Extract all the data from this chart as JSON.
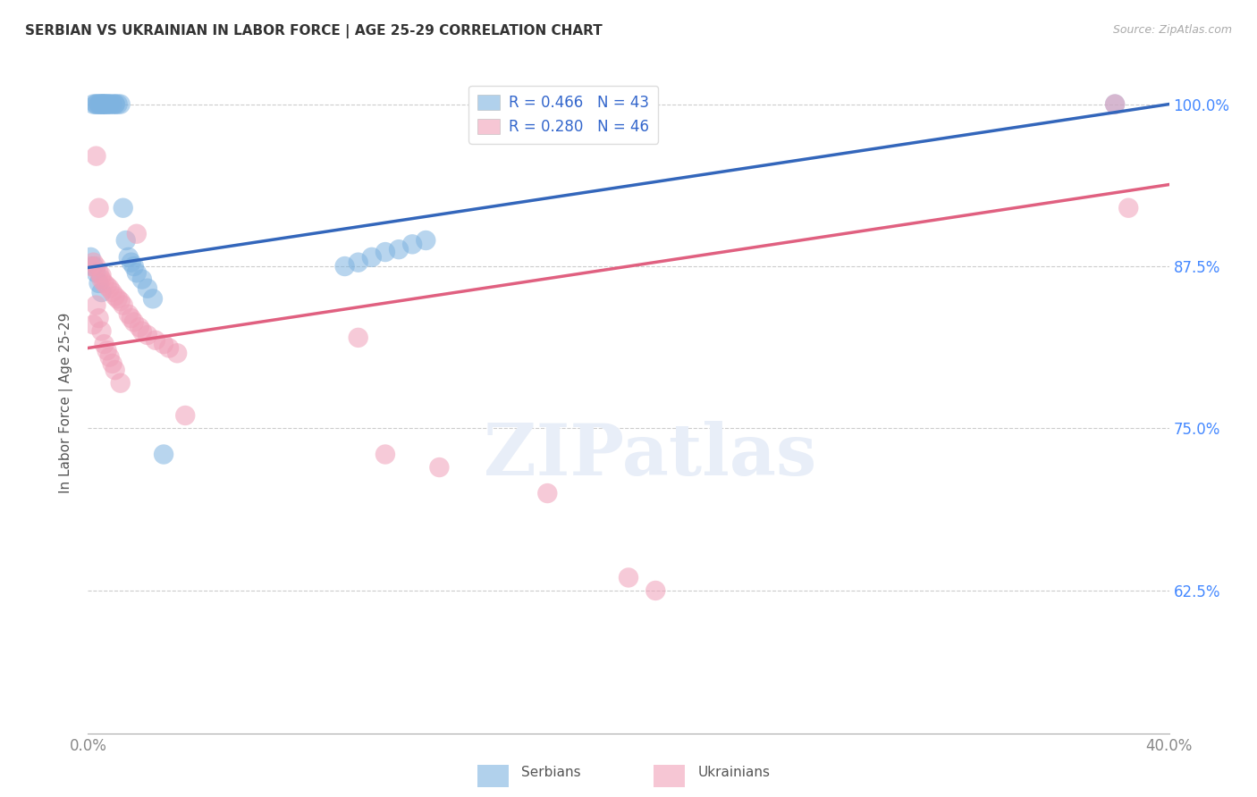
{
  "title": "SERBIAN VS UKRAINIAN IN LABOR FORCE | AGE 25-29 CORRELATION CHART",
  "source": "Source: ZipAtlas.com",
  "ylabel": "In Labor Force | Age 25-29",
  "yticks": [
    0.625,
    0.75,
    0.875,
    1.0
  ],
  "ytick_labels": [
    "62.5%",
    "75.0%",
    "87.5%",
    "100.0%"
  ],
  "legend_serbian": "R = 0.466   N = 43",
  "legend_ukrainian": "R = 0.280   N = 46",
  "legend_label_serbian": "Serbians",
  "legend_label_ukrainian": "Ukrainians",
  "serbian_color": "#7EB3E0",
  "ukrainian_color": "#F0A0B8",
  "serbian_line_color": "#3366BB",
  "ukrainian_line_color": "#E06080",
  "background_color": "#FFFFFF",
  "xlim": [
    0.0,
    0.4
  ],
  "ylim": [
    0.515,
    1.025
  ],
  "serbian_x": [
    0.002,
    0.003,
    0.003,
    0.004,
    0.004,
    0.005,
    0.005,
    0.005,
    0.006,
    0.006,
    0.006,
    0.007,
    0.007,
    0.008,
    0.008,
    0.009,
    0.01,
    0.01,
    0.011,
    0.012,
    0.013,
    0.014,
    0.015,
    0.016,
    0.017,
    0.018,
    0.02,
    0.022,
    0.024,
    0.028,
    0.095,
    0.1,
    0.105,
    0.11,
    0.115,
    0.12,
    0.125,
    0.38,
    0.001,
    0.002,
    0.003,
    0.004,
    0.005
  ],
  "serbian_y": [
    1.0,
    1.0,
    1.0,
    1.0,
    1.0,
    1.0,
    1.0,
    1.0,
    1.0,
    1.0,
    1.0,
    1.0,
    1.0,
    1.0,
    1.0,
    1.0,
    1.0,
    1.0,
    1.0,
    1.0,
    0.92,
    0.895,
    0.882,
    0.878,
    0.875,
    0.87,
    0.865,
    0.858,
    0.85,
    0.73,
    0.875,
    0.878,
    0.882,
    0.886,
    0.888,
    0.892,
    0.895,
    1.0,
    0.882,
    0.875,
    0.87,
    0.862,
    0.855
  ],
  "ukrainian_x": [
    0.001,
    0.002,
    0.003,
    0.003,
    0.004,
    0.004,
    0.005,
    0.005,
    0.006,
    0.007,
    0.008,
    0.009,
    0.01,
    0.011,
    0.012,
    0.013,
    0.015,
    0.016,
    0.017,
    0.018,
    0.019,
    0.02,
    0.022,
    0.025,
    0.028,
    0.03,
    0.033,
    0.036,
    0.1,
    0.11,
    0.13,
    0.17,
    0.2,
    0.21,
    0.38,
    0.385,
    0.002,
    0.003,
    0.004,
    0.005,
    0.006,
    0.007,
    0.008,
    0.009,
    0.01,
    0.012
  ],
  "ukrainian_y": [
    0.875,
    0.878,
    0.96,
    0.875,
    0.92,
    0.87,
    0.868,
    0.865,
    0.862,
    0.86,
    0.858,
    0.855,
    0.852,
    0.85,
    0.848,
    0.845,
    0.838,
    0.835,
    0.832,
    0.9,
    0.828,
    0.825,
    0.822,
    0.818,
    0.815,
    0.812,
    0.808,
    0.76,
    0.82,
    0.73,
    0.72,
    0.7,
    0.635,
    0.625,
    1.0,
    0.92,
    0.83,
    0.845,
    0.835,
    0.825,
    0.815,
    0.81,
    0.805,
    0.8,
    0.795,
    0.785
  ]
}
